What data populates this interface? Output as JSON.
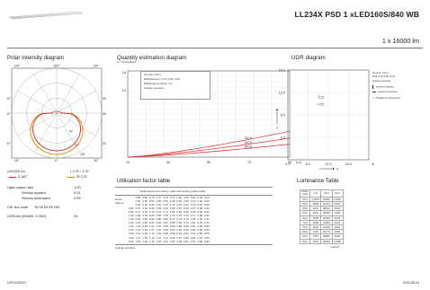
{
  "header": {
    "title": "LL234X PSD 1 xLED160S/840 WB",
    "subtitle": "1 x 16000 lm"
  },
  "polar": {
    "title": "Polar intensity diagram",
    "unit_label": "(cd/1000 lm)",
    "lor_label": "L.O.R.= 1.00",
    "angles_top": [
      "120°",
      "180°",
      "120°"
    ],
    "angles_side_left": [
      "90°",
      "60°",
      "30°"
    ],
    "angles_side_right": [
      "90°",
      "60°",
      "30°"
    ],
    "angles_bottom": [
      "30°",
      "0°",
      "30°"
    ],
    "ring_labels": [
      "50",
      "100",
      "150"
    ],
    "legend": [
      {
        "label": "0-180°",
        "color": "#c03030"
      },
      {
        "label": "90-270°",
        "color": "#d08c00"
      }
    ],
    "c0_color": "#c03030",
    "c90_color": "#d08c00"
  },
  "quantity": {
    "title": "Quantity estimation diagram",
    "y_label": "nr. of luminaires",
    "box_lines": [
      "hmount: 2.8 m",
      "Reflectances: 0.70, 0.50, 0.20",
      "Maintenance factor: 1.0",
      "Ceiling mounted"
    ],
    "y_ticks": [
      "16",
      "14"
    ],
    "x_ticks": [
      "10",
      "30",
      "50",
      "70",
      "90"
    ],
    "x_unit": "(m)",
    "curve_labels": [
      "750 lx",
      "500 lx",
      "300 lx"
    ],
    "curve_color": "#d03030"
  },
  "ugr": {
    "title": "UGR diagram",
    "y_ticks": [
      "16.0",
      "12.0",
      "8.0",
      "4.0"
    ],
    "x_ticks": [
      "4.0",
      "8.0",
      "12.0",
      "16.0"
    ],
    "x_unit": "m",
    "x_axis": "X",
    "y_axis": "Y",
    "marks": [
      "22",
      "22"
    ],
    "legend_lines": [
      "hmount: 2.8 m",
      "Refl: 0.70 0.50 0.20",
      "Ceiling mounted",
      "viewed endwise",
      "viewed crosswise",
      "Y : Parallel to viewing dir."
    ]
  },
  "light_output": {
    "rows": [
      {
        "label": "Light output ratio",
        "value": "1.00"
      },
      {
        "label": "Service upward",
        "value": "0.01"
      },
      {
        "label": "Service downward",
        "value": "0.99"
      },
      {
        "label": "CIE flux code",
        "value": "76 96 99 99 100"
      },
      {
        "label": "UGRcen (4Hx8H, 0.25H)",
        "value": "20"
      }
    ]
  },
  "utilisation": {
    "title": "Utilisation factor table",
    "caption": "Reflectances for ceiling, walls and working plane (CIE)",
    "room_index_label": "Room Index k",
    "reflectance_rows": [
      [
        "0.80",
        "0.80",
        "0.70",
        "0.70",
        "0.70",
        "0.70",
        "0.50",
        "0.50",
        "0.50",
        "0.30",
        "0.00"
      ],
      [
        "0.50",
        "0.50",
        "0.50",
        "0.50",
        "0.50",
        "0.30",
        "0.50",
        "0.30",
        "0.10",
        "0.30",
        "0.00"
      ],
      [
        "0.30",
        "0.10",
        "0.30",
        "0.20",
        "0.10",
        "0.10",
        "0.10",
        "0.10",
        "0.10",
        "0.10",
        "0.00"
      ]
    ],
    "rows": [
      {
        "k": "0.60",
        "v": [
          "0.67",
          "0.64",
          "0.66",
          "0.65",
          "0.63",
          "0.58",
          "0.57",
          "0.58",
          "0.57",
          "0.58",
          "0.52"
        ]
      },
      {
        "k": "0.80",
        "v": [
          "0.77",
          "0.72",
          "0.75",
          "0.73",
          "0.71",
          "0.66",
          "0.65",
          "0.62",
          "0.65",
          "0.62",
          "0.60"
        ]
      },
      {
        "k": "1.00",
        "v": [
          "0.84",
          "0.78",
          "0.80",
          "0.80",
          "0.78",
          "0.73",
          "0.75",
          "0.70",
          "0.71",
          "0.68",
          "0.65"
        ]
      },
      {
        "k": "1.25",
        "v": [
          "0.92",
          "0.89",
          "0.90",
          "0.86",
          "0.82",
          "0.79",
          "0.79",
          "0.75",
          "0.78",
          "0.75",
          "0.71"
        ]
      },
      {
        "k": "1.50",
        "v": [
          "0.97",
          "0.88",
          "0.95",
          "0.90",
          "0.87",
          "0.85",
          "0.82",
          "0.79",
          "0.81",
          "0.78",
          "0.76"
        ]
      },
      {
        "k": "2.00",
        "v": [
          "1.04",
          "0.93",
          "1.02",
          "0.97",
          "0.93",
          "0.88",
          "0.88",
          "0.86",
          "0.87",
          "0.83",
          "0.80"
        ]
      },
      {
        "k": "2.50",
        "v": [
          "1.10",
          "0.99",
          "1.07",
          "1.01",
          "0.96",
          "0.93",
          "0.92",
          "0.90",
          "0.90",
          "0.86",
          "0.84"
        ]
      },
      {
        "k": "3.00",
        "v": [
          "1.13",
          "0.99",
          "1.10",
          "1.04",
          "0.98",
          "0.96",
          "0.94",
          "0.91",
          "0.91",
          "0.89",
          "0.86"
        ]
      },
      {
        "k": "4.00",
        "v": [
          "1.17",
          "1.02",
          "1.14",
          "1.07",
          "1.01",
          "0.99",
          "0.97",
          "0.95",
          "0.95",
          "0.91",
          "0.89"
        ]
      },
      {
        "k": "5.00",
        "v": [
          "1.20",
          "1.03",
          "1.16",
          "1.09",
          "1.02",
          "1.00",
          "0.99",
          "0.97",
          "0.97",
          "0.94",
          "0.90"
        ]
      }
    ],
    "footer": "Ceiling mounted"
  },
  "luminance": {
    "title": "Luminance Table",
    "header": [
      "Plane Cone",
      "0.0",
      "45.0",
      "90.0"
    ],
    "rows": [
      [
        "45.0",
        "17878",
        "22681",
        "17664"
      ],
      [
        "50.0",
        "9593",
        "19401",
        "10217"
      ],
      [
        "55.0",
        "4601",
        "48612",
        "5224"
      ],
      [
        "60.0",
        "2634",
        "39994",
        "3402"
      ],
      [
        "65.0",
        "3378",
        "25353",
        "3378"
      ],
      [
        "70.0",
        "2948",
        "21949",
        "3421"
      ],
      [
        "75.0",
        "3001",
        "21166",
        "4001"
      ],
      [
        "80.0",
        "2107",
        "20774",
        "4060"
      ],
      [
        "85.0",
        "1457",
        "39881",
        "6463"
      ],
      [
        "90.0",
        "2373",
        "26554",
        "17880"
      ]
    ],
    "unit": "(cd/m2)"
  },
  "footer": {
    "code": "LVP0228200",
    "date": "2020-08-04"
  }
}
